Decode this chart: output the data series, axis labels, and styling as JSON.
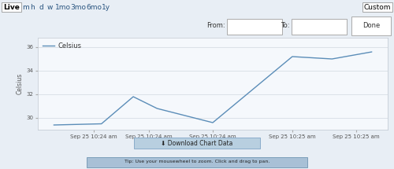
{
  "nav_items": [
    "Live",
    "m",
    "h",
    "d",
    "w",
    "1mo",
    "3mo",
    "6mo",
    "1y"
  ],
  "nav_active": "Live",
  "custom_label": "Custom",
  "from_label": "From:",
  "to_label": "To:",
  "done_label": "Done",
  "legend_label": "Celsius",
  "ylabel": "Celsius",
  "x_labels": [
    "Sep 25 10:24 am",
    "Sep 25 10:24 am",
    "Sep 25 10:24 am",
    "Sep 25 10:25 am",
    "Sep 25 10:25 am"
  ],
  "y_values": [
    29.4,
    29.5,
    31.8,
    30.8,
    29.6,
    35.2,
    35.0,
    35.6
  ],
  "x_data": [
    0,
    0.6,
    1.0,
    1.3,
    2.0,
    3.0,
    3.5,
    4.0
  ],
  "yticks": [
    30,
    32,
    34,
    36
  ],
  "ylim": [
    29.0,
    36.8
  ],
  "xlim": [
    -0.2,
    4.2
  ],
  "xtick_pos": [
    0.5,
    1.2,
    2.0,
    3.0,
    3.8
  ],
  "line_color": "#5b8db8",
  "bg_color": "#e8eef5",
  "plot_bg": "#f5f8fc",
  "nav_bg": "#cdd9e5",
  "nav_active_bg": "#ffffff",
  "grid_color": "#d0d8e0",
  "download_label": "⬇ Download Chart Data",
  "tip_label": "Tip: Use your mousewheel to zoom. Click and drag to pan.",
  "download_bg": "#b8cfe0",
  "tip_bg": "#a8c0d6",
  "nav_fontsize": 6.5,
  "axis_fontsize": 5.0,
  "legend_fontsize": 6.0
}
